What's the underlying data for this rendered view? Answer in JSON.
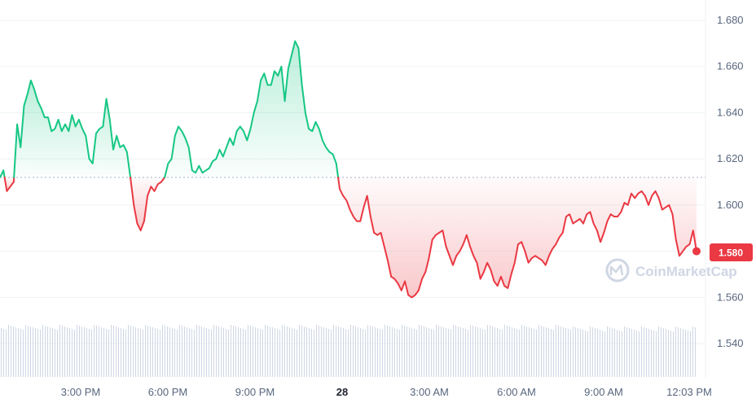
{
  "chart_data": {
    "type": "line",
    "baseline": 1.612,
    "current_price_label": "1.580",
    "watermark": "CoinMarketCap",
    "y_ticks": [
      "1.680",
      "1.660",
      "1.640",
      "1.620",
      "1.600",
      "1.580",
      "1.560",
      "1.540"
    ],
    "y_tick_values": [
      1.68,
      1.66,
      1.64,
      1.62,
      1.6,
      1.58,
      1.56,
      1.54
    ],
    "x_ticks": [
      {
        "label": "3:00 PM",
        "bold": false
      },
      {
        "label": "6:00 PM",
        "bold": false
      },
      {
        "label": "9:00 PM",
        "bold": false
      },
      {
        "label": "28",
        "bold": true
      },
      {
        "label": "3:00 AM",
        "bold": false
      },
      {
        "label": "6:00 AM",
        "bold": false
      },
      {
        "label": "9:00 AM",
        "bold": false
      },
      {
        "label": "12:03 PM",
        "bold": false
      }
    ],
    "colors": {
      "up": "#16c784",
      "down": "#ea3943",
      "grid": "#eff2f5",
      "volume": "#cfd6e4",
      "axis_text": "#58667e"
    },
    "series": [
      {
        "values": [
          1.612,
          1.615,
          1.606,
          1.608,
          1.61,
          1.635,
          1.625,
          1.643,
          1.648,
          1.654,
          1.65,
          1.645,
          1.642,
          1.638,
          1.638,
          1.632,
          1.633,
          1.637,
          1.632,
          1.635,
          1.632,
          1.639,
          1.634,
          1.637,
          1.633,
          1.63,
          1.62,
          1.618,
          1.631,
          1.633,
          1.634,
          1.646,
          1.637,
          1.624,
          1.63,
          1.625,
          1.626,
          1.623,
          1.612,
          1.6,
          1.592,
          1.589,
          1.593,
          1.604,
          1.608,
          1.606,
          1.609,
          1.61,
          1.612,
          1.618,
          1.62,
          1.63,
          1.634,
          1.632,
          1.629,
          1.625,
          1.615,
          1.614,
          1.617,
          1.614,
          1.615,
          1.616,
          1.619,
          1.62,
          1.624,
          1.621,
          1.625,
          1.629,
          1.626,
          1.632,
          1.634,
          1.632,
          1.628,
          1.633,
          1.64,
          1.645,
          1.654,
          1.657,
          1.652,
          1.652,
          1.658,
          1.656,
          1.66,
          1.645,
          1.659,
          1.665,
          1.671,
          1.668,
          1.652,
          1.64,
          1.633,
          1.632,
          1.636,
          1.633,
          1.628,
          1.625,
          1.623,
          1.622,
          1.618,
          1.607,
          1.604,
          1.602,
          1.598,
          1.595,
          1.593,
          1.593,
          1.599,
          1.604,
          1.595,
          1.588,
          1.587,
          1.588,
          1.582,
          1.576,
          1.569,
          1.568,
          1.566,
          1.563,
          1.567,
          1.561,
          1.56,
          1.561,
          1.563,
          1.568,
          1.571,
          1.577,
          1.585,
          1.587,
          1.588,
          1.589,
          1.582,
          1.578,
          1.574,
          1.578,
          1.58,
          1.583,
          1.587,
          1.582,
          1.578,
          1.575,
          1.568,
          1.571,
          1.575,
          1.572,
          1.567,
          1.565,
          1.569,
          1.565,
          1.564,
          1.57,
          1.575,
          1.583,
          1.584,
          1.58,
          1.575,
          1.577,
          1.578,
          1.577,
          1.576,
          1.574,
          1.578,
          1.581,
          1.583,
          1.586,
          1.588,
          1.595,
          1.596,
          1.592,
          1.593,
          1.594,
          1.592,
          1.596,
          1.597,
          1.592,
          1.589,
          1.584,
          1.588,
          1.593,
          1.596,
          1.595,
          1.595,
          1.597,
          1.601,
          1.6,
          1.605,
          1.603,
          1.605,
          1.606,
          1.604,
          1.6,
          1.604,
          1.606,
          1.603,
          1.598,
          1.599,
          1.6,
          1.596,
          1.585,
          1.578,
          1.58,
          1.582,
          1.583,
          1.589,
          1.58
        ]
      }
    ]
  }
}
